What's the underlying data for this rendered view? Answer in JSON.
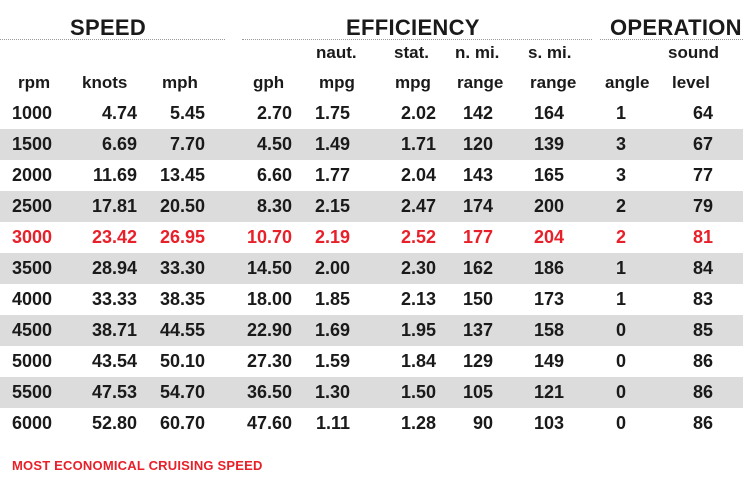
{
  "groups": {
    "speed": "SPEED",
    "efficiency": "EFFICIENCY",
    "operation": "OPERATION"
  },
  "headers": {
    "rpm": [
      "",
      "rpm"
    ],
    "knots": [
      "",
      "knots"
    ],
    "mph": [
      "",
      "mph"
    ],
    "gph": [
      "",
      "gph"
    ],
    "naut_mpg": [
      "naut.",
      "mpg"
    ],
    "stat_mpg": [
      "stat.",
      "mpg"
    ],
    "nmi_range": [
      "n. mi.",
      "range"
    ],
    "smi_range": [
      "s. mi.",
      "range"
    ],
    "angle": [
      "",
      "angle"
    ],
    "sound_level": [
      "sound",
      "level"
    ]
  },
  "rows": [
    [
      "1000",
      "4.74",
      "5.45",
      "2.70",
      "1.75",
      "2.02",
      "142",
      "164",
      "1",
      "64"
    ],
    [
      "1500",
      "6.69",
      "7.70",
      "4.50",
      "1.49",
      "1.71",
      "120",
      "139",
      "3",
      "67"
    ],
    [
      "2000",
      "11.69",
      "13.45",
      "6.60",
      "1.77",
      "2.04",
      "143",
      "165",
      "3",
      "77"
    ],
    [
      "2500",
      "17.81",
      "20.50",
      "8.30",
      "2.15",
      "2.47",
      "174",
      "200",
      "2",
      "79"
    ],
    [
      "3000",
      "23.42",
      "26.95",
      "10.70",
      "2.19",
      "2.52",
      "177",
      "204",
      "2",
      "81"
    ],
    [
      "3500",
      "28.94",
      "33.30",
      "14.50",
      "2.00",
      "2.30",
      "162",
      "186",
      "1",
      "84"
    ],
    [
      "4000",
      "33.33",
      "38.35",
      "18.00",
      "1.85",
      "2.13",
      "150",
      "173",
      "1",
      "83"
    ],
    [
      "4500",
      "38.71",
      "44.55",
      "22.90",
      "1.69",
      "1.95",
      "137",
      "158",
      "0",
      "85"
    ],
    [
      "5000",
      "43.54",
      "50.10",
      "27.30",
      "1.59",
      "1.84",
      "129",
      "149",
      "0",
      "86"
    ],
    [
      "5500",
      "47.53",
      "54.70",
      "36.50",
      "1.30",
      "1.50",
      "105",
      "121",
      "0",
      "86"
    ],
    [
      "6000",
      "52.80",
      "60.70",
      "47.60",
      "1.11",
      "1.28",
      "90",
      "103",
      "0",
      "86"
    ]
  ],
  "highlight_row_index": 4,
  "highlight_color": "#e8202a",
  "shade_color": "#dcdcdc",
  "footnote": "MOST ECONOMICAL CRUISING SPEED"
}
